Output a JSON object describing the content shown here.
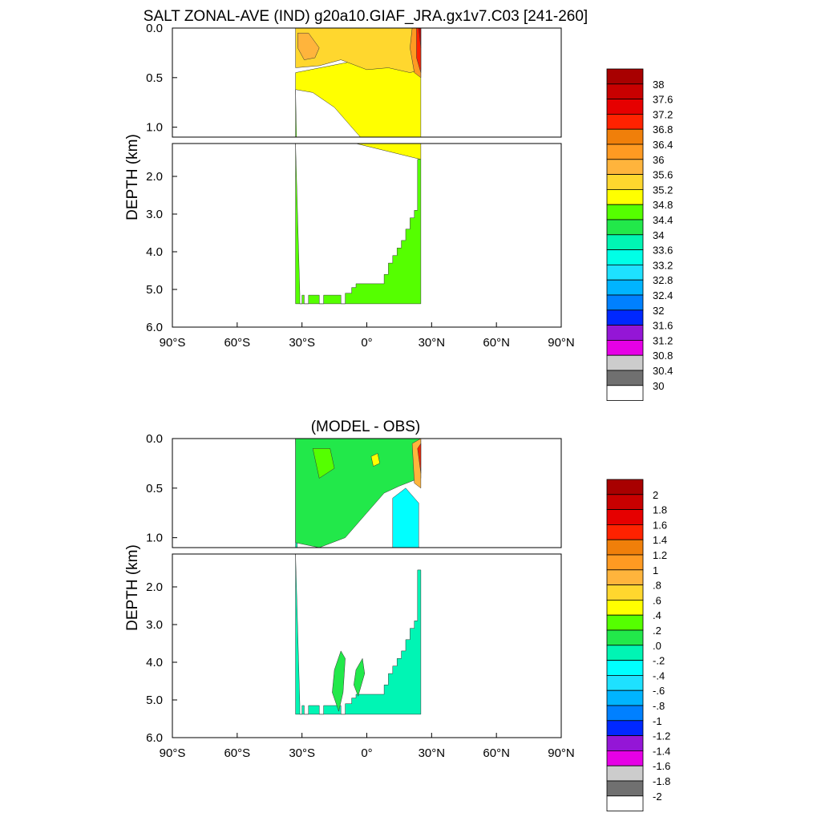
{
  "chart_data": [
    {
      "type": "heatmap",
      "title": "SALT ZONAL-AVE (IND) g20a10.GIAF_JRA.gx1v7.C03 [241-260]",
      "xlabel": "",
      "ylabel": "DEPTH (km)",
      "x_ticks": [
        "90°S",
        "60°S",
        "30°S",
        "0°",
        "30°N",
        "60°N",
        "90°N"
      ],
      "upper_y_ticks": [
        "0.0",
        "0.5",
        "1.0"
      ],
      "lower_y_ticks": [
        "2.0",
        "3.0",
        "4.0",
        "5.0",
        "6.0"
      ],
      "xlim": [
        -90,
        90
      ],
      "ylim_km": [
        6.0,
        0.0
      ],
      "colorbar": {
        "labels": [
          "38",
          "37.6",
          "37.2",
          "36.8",
          "36.4",
          "36",
          "35.6",
          "35.2",
          "34.8",
          "34.4",
          "34",
          "33.6",
          "33.2",
          "32.8",
          "32.4",
          "32",
          "31.6",
          "31.2",
          "30.8",
          "30.4",
          "30"
        ],
        "colors": [
          "#a80000",
          "#c80000",
          "#e60000",
          "#ff2200",
          "#f07f0a",
          "#ff9a22",
          "#ffb43c",
          "#ffd72e",
          "#ffff00",
          "#55ff00",
          "#22e84a",
          "#00f5b4",
          "#00ffe6",
          "#1ee1ff",
          "#00b4ff",
          "#0080ff",
          "#0028ff",
          "#9416d6",
          "#e600e6",
          "#cccccc",
          "#707070",
          "#ffffff"
        ]
      },
      "fields": [
        {
          "name": "deep",
          "color": "#55ff00",
          "lat": [
            -33,
            -33,
            25,
            25,
            23.5,
            23.5,
            22,
            22,
            20,
            20,
            18,
            18,
            16,
            16,
            14,
            14,
            12,
            12,
            10,
            10,
            8,
            8,
            -5,
            -5,
            -7,
            -7,
            -10,
            -10,
            -12,
            -12,
            -20,
            -20,
            -22,
            -22,
            -27,
            -27,
            -29,
            -29,
            -30,
            -30,
            -31,
            -31
          ],
          "depth": [
            0.62,
            5.38,
            5.38,
            1.55,
            1.55,
            2.9,
            2.9,
            3.1,
            3.1,
            3.4,
            3.4,
            3.7,
            3.7,
            3.9,
            3.9,
            4.1,
            4.1,
            4.3,
            4.3,
            4.6,
            4.6,
            4.85,
            4.85,
            4.95,
            4.95,
            5.1,
            5.1,
            5.38,
            5.38,
            5.15,
            5.15,
            5.38,
            5.38,
            5.15,
            5.15,
            5.38,
            5.38,
            5.15,
            5.15,
            5.38,
            5.38,
            5.15
          ]
        },
        {
          "name": "mid",
          "color": "#ffff00",
          "lat": [
            -33,
            25,
            25,
            -5,
            -15,
            -25,
            -33
          ],
          "depth": [
            0.45,
            0.2,
            1.55,
            1.05,
            0.8,
            0.65,
            0.62
          ]
        },
        {
          "name": "upper",
          "color": "#ffd72e",
          "lat": [
            -33,
            25,
            25,
            20,
            10,
            0,
            -12,
            -22,
            -33
          ],
          "depth": [
            0.0,
            0.0,
            0.42,
            0.45,
            0.4,
            0.42,
            0.32,
            0.38,
            0.4
          ]
        },
        {
          "name": "core",
          "color": "#ffb43c",
          "lat": [
            -32,
            -27,
            -22,
            -24,
            -29,
            -32
          ],
          "depth": [
            0.05,
            0.05,
            0.2,
            0.3,
            0.32,
            0.2
          ]
        },
        {
          "name": "rim1",
          "color": "#ff9a22",
          "lat": [
            21,
            25,
            25,
            22,
            20
          ],
          "depth": [
            0.0,
            0.0,
            0.5,
            0.45,
            0.2
          ]
        },
        {
          "name": "rim2",
          "color": "#ff2200",
          "lat": [
            23,
            25,
            25,
            23
          ],
          "depth": [
            0.0,
            0.0,
            0.45,
            0.3
          ]
        },
        {
          "name": "rim3",
          "color": "#c80000",
          "lat": [
            24,
            25,
            25
          ],
          "depth": [
            0.0,
            0.0,
            0.2
          ]
        }
      ]
    },
    {
      "type": "heatmap",
      "title": "(MODEL - OBS)",
      "xlabel": "",
      "ylabel": "DEPTH (km)",
      "x_ticks": [
        "90°S",
        "60°S",
        "30°S",
        "0°",
        "30°N",
        "60°N",
        "90°N"
      ],
      "upper_y_ticks": [
        "0.0",
        "0.5",
        "1.0"
      ],
      "lower_y_ticks": [
        "2.0",
        "3.0",
        "4.0",
        "5.0",
        "6.0"
      ],
      "xlim": [
        -90,
        90
      ],
      "ylim_km": [
        6.0,
        0.0
      ],
      "colorbar": {
        "labels": [
          "2",
          "1.8",
          "1.6",
          "1.4",
          "1.2",
          "1",
          ".8",
          ".6",
          ".4",
          ".2",
          ".0",
          "-.2",
          "-.4",
          "-.6",
          "-.8",
          "-1",
          "-1.2",
          "-1.4",
          "-1.6",
          "-1.8",
          "-2"
        ],
        "colors": [
          "#a80000",
          "#c80000",
          "#e60000",
          "#ff2200",
          "#f07f0a",
          "#ff9a22",
          "#ffb43c",
          "#ffd72e",
          "#ffff00",
          "#55ff00",
          "#22e84a",
          "#00f5b4",
          "#00ffff",
          "#1ee1ff",
          "#00b4ff",
          "#0080ff",
          "#0028ff",
          "#9416d6",
          "#e600e6",
          "#cccccc",
          "#707070",
          "#ffffff"
        ]
      },
      "fields": [
        {
          "name": "deep",
          "color": "#00f5b4",
          "lat": [
            -33,
            -33,
            25,
            25,
            23.5,
            23.5,
            22,
            22,
            20,
            20,
            18,
            18,
            16,
            16,
            14,
            14,
            12,
            12,
            10,
            10,
            8,
            8,
            -5,
            -5,
            -7,
            -7,
            -10,
            -10,
            -12,
            -12,
            -20,
            -20,
            -22,
            -22,
            -27,
            -27,
            -29,
            -29,
            -30,
            -30,
            -31,
            -31
          ],
          "depth": [
            0.0,
            5.38,
            5.38,
            1.55,
            1.55,
            2.9,
            2.9,
            3.1,
            3.1,
            3.4,
            3.4,
            3.7,
            3.7,
            3.9,
            3.9,
            4.1,
            4.1,
            4.3,
            4.3,
            4.6,
            4.6,
            4.85,
            4.85,
            4.95,
            4.95,
            5.1,
            5.1,
            5.38,
            5.38,
            5.15,
            5.15,
            5.38,
            5.38,
            5.15,
            5.15,
            5.38,
            5.38,
            5.15,
            5.15,
            5.38,
            5.38,
            5.15
          ]
        },
        {
          "name": "upper",
          "color": "#22e84a",
          "lat": [
            -33,
            25,
            25,
            22,
            15,
            8,
            0,
            -10,
            -22,
            -33
          ],
          "depth": [
            0.0,
            0.0,
            0.4,
            0.42,
            0.48,
            0.55,
            0.75,
            1.0,
            1.1,
            1.05
          ]
        },
        {
          "name": "fresh",
          "color": "#00ffff",
          "lat": [
            12,
            18,
            24,
            24,
            12
          ],
          "depth": [
            0.6,
            0.5,
            0.65,
            1.15,
            1.15
          ]
        },
        {
          "name": "blob1",
          "color": "#22e84a",
          "lat": [
            -15,
            -12,
            -10,
            -11,
            -13,
            -16
          ],
          "depth": [
            4.2,
            3.7,
            3.9,
            4.8,
            5.3,
            4.8
          ]
        },
        {
          "name": "blob2",
          "color": "#22e84a",
          "lat": [
            -5,
            -2,
            -1,
            -4,
            -6
          ],
          "depth": [
            4.2,
            3.9,
            4.3,
            4.9,
            4.6
          ]
        },
        {
          "name": "green",
          "color": "#55ff00",
          "lat": [
            -25,
            -17,
            -15,
            -22
          ],
          "depth": [
            0.1,
            0.1,
            0.3,
            0.4
          ]
        },
        {
          "name": "yel",
          "color": "#ffff00",
          "lat": [
            2,
            5,
            6,
            3
          ],
          "depth": [
            0.18,
            0.15,
            0.25,
            0.28
          ]
        },
        {
          "name": "hot1",
          "color": "#ffb43c",
          "lat": [
            21,
            25,
            25,
            22
          ],
          "depth": [
            0.05,
            0.0,
            0.5,
            0.45
          ]
        },
        {
          "name": "hot2",
          "color": "#ff2200",
          "lat": [
            23.5,
            25,
            25
          ],
          "depth": [
            0.1,
            0.05,
            0.35
          ]
        }
      ]
    }
  ]
}
